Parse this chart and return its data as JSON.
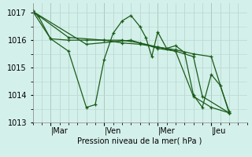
{
  "background_color": "#d4f0ea",
  "grid_color_major": "#b8d8d0",
  "grid_color_minor": "#cce8e2",
  "line_color": "#1a5c1a",
  "ylabel": "Pression niveau de la mer( hPa )",
  "ylim": [
    1013.0,
    1017.35
  ],
  "yticks": [
    1013,
    1014,
    1015,
    1016,
    1017
  ],
  "x_tick_labels": [
    "|Mar",
    "|Ven",
    "|Mer",
    "|Jeu"
  ],
  "x_tick_positions": [
    6,
    24,
    42,
    60
  ],
  "xlim": [
    0,
    72
  ],
  "series": [
    [
      0,
      1017.05,
      2,
      1016.85,
      6,
      1016.05,
      12,
      1015.6,
      18,
      1013.55,
      21,
      1013.65,
      24,
      1015.3,
      27,
      1016.25,
      30,
      1016.7,
      33,
      1016.9,
      36,
      1016.5,
      38,
      1016.1,
      40,
      1015.4,
      42,
      1016.3,
      45,
      1015.7,
      48,
      1015.8,
      51,
      1015.55,
      54,
      1014.0,
      57,
      1013.55,
      60,
      1014.75,
      63,
      1014.35,
      66,
      1013.4
    ],
    [
      0,
      1017.05,
      6,
      1016.05,
      12,
      1016.0,
      18,
      1016.0,
      24,
      1016.0,
      30,
      1015.9,
      36,
      1015.85,
      42,
      1015.75,
      48,
      1015.65,
      54,
      1015.5,
      60,
      1015.4,
      66,
      1013.35
    ],
    [
      0,
      1017.05,
      18,
      1015.85,
      33,
      1016.0,
      36,
      1015.9,
      42,
      1015.7,
      48,
      1015.6,
      54,
      1015.4,
      57,
      1013.95,
      66,
      1013.35
    ],
    [
      0,
      1017.05,
      12,
      1016.1,
      24,
      1016.0,
      30,
      1016.0,
      36,
      1015.9,
      42,
      1015.75,
      48,
      1015.6,
      54,
      1013.95,
      60,
      1013.55,
      66,
      1013.35
    ]
  ]
}
